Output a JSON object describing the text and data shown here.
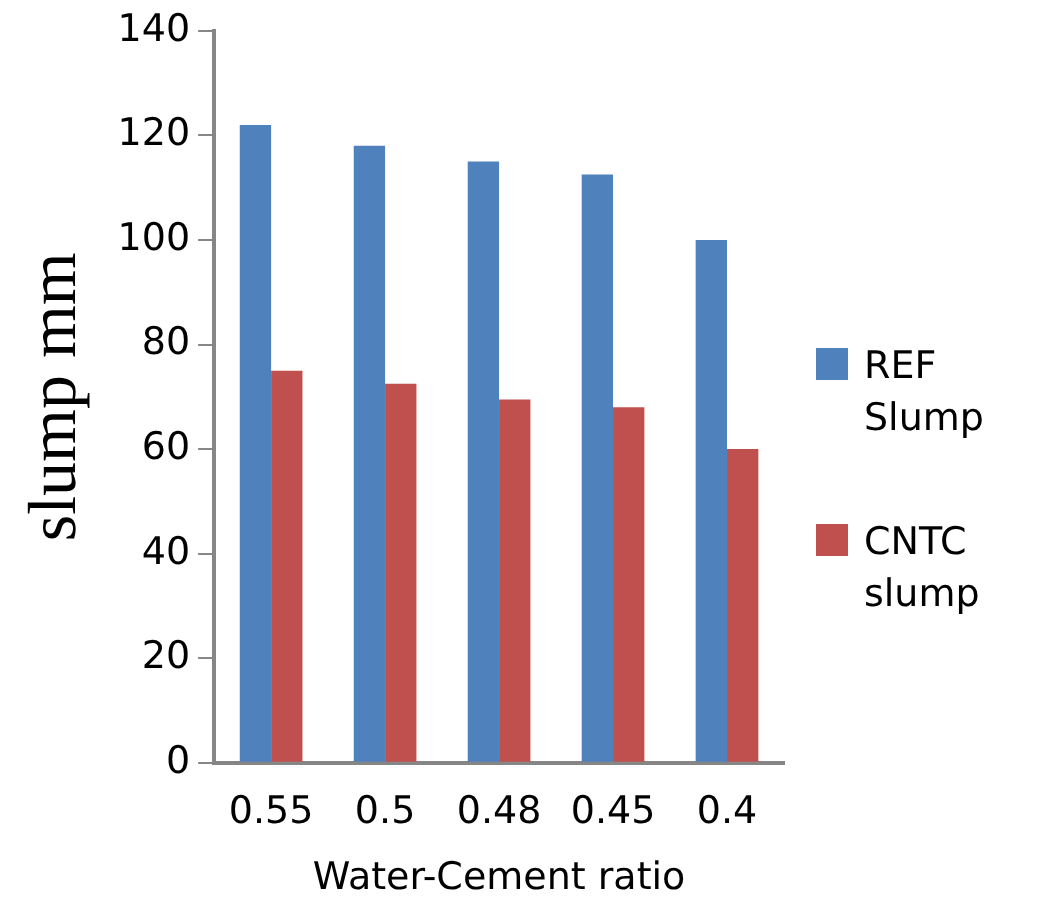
{
  "chart_data": {
    "type": "bar",
    "xlabel": "Water-Cement ratio",
    "ylabel": "slump mm",
    "categories": [
      "0.55",
      "0.5",
      "0.48",
      "0.45",
      "0.4"
    ],
    "series": [
      {
        "name": "REF Slump",
        "color": "#4f81bd",
        "values": [
          122,
          118,
          115,
          112.5,
          100
        ]
      },
      {
        "name": "CNTC slump",
        "color": "#c0504d",
        "values": [
          75,
          72.5,
          69.5,
          68,
          60
        ]
      }
    ],
    "ylim": [
      0,
      140
    ],
    "yticks": [
      0,
      20,
      40,
      60,
      80,
      100,
      120,
      140
    ],
    "grid": false,
    "legend": "right"
  }
}
